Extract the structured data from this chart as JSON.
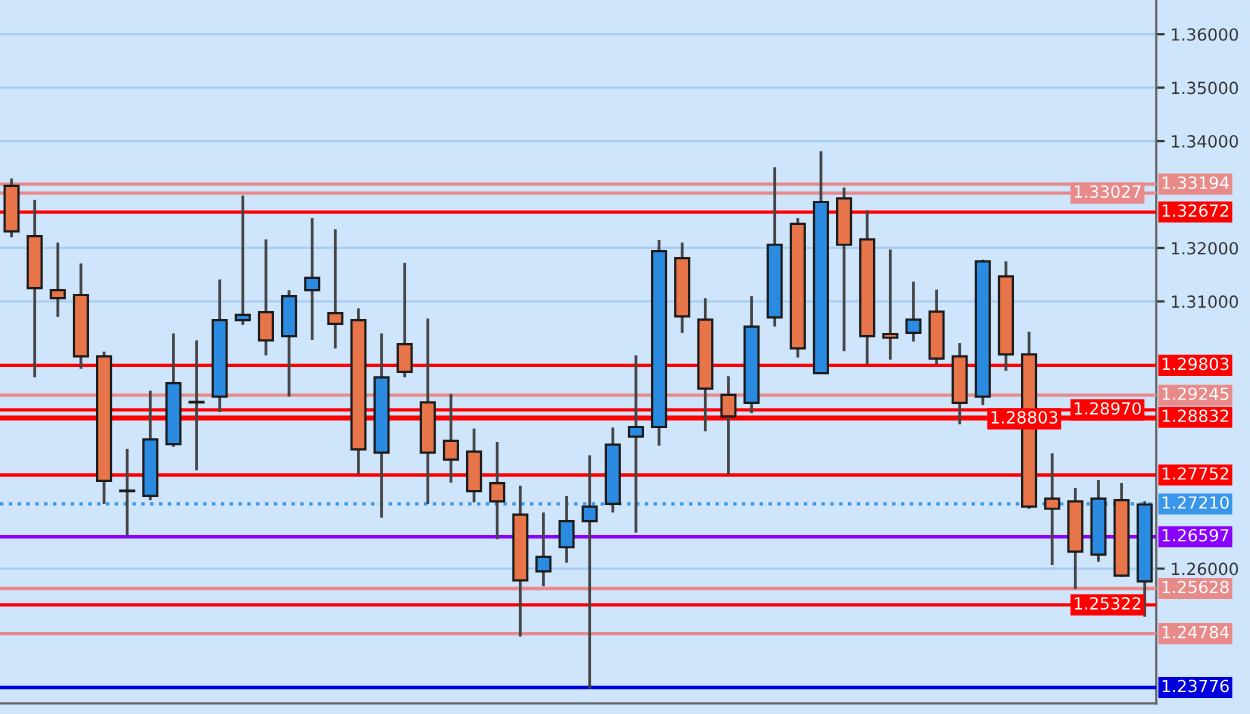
{
  "chart_data": {
    "type": "candlestick",
    "categories": [
      null,
      null,
      null,
      null,
      null,
      null,
      null,
      null,
      null,
      null,
      null,
      null,
      null,
      null,
      null,
      null,
      null,
      null,
      null,
      null,
      null,
      null,
      null,
      null,
      null,
      null,
      null,
      null,
      null,
      null,
      null,
      null,
      null,
      null,
      null,
      null,
      null,
      null,
      null,
      null,
      null,
      null,
      null,
      null,
      null,
      null,
      null,
      null,
      null,
      null
    ],
    "ohlc": [
      [
        1.3316,
        1.333,
        1.322,
        1.3231
      ],
      [
        1.3222,
        1.329,
        1.2958,
        1.3125
      ],
      [
        1.3121,
        1.321,
        1.3071,
        1.3106
      ],
      [
        1.3112,
        1.3171,
        1.2974,
        1.2997
      ],
      [
        1.2997,
        1.3006,
        1.2721,
        1.2764
      ],
      [
        1.2746,
        1.2824,
        1.2661,
        1.2745
      ],
      [
        1.2736,
        1.2933,
        1.2728,
        1.2842
      ],
      [
        1.2833,
        1.304,
        1.2828,
        1.2947
      ],
      [
        1.2911,
        1.3027,
        1.2784,
        1.2912
      ],
      [
        1.2922,
        1.3141,
        1.2893,
        1.3065
      ],
      [
        1.3065,
        1.3298,
        1.3056,
        1.3075
      ],
      [
        1.308,
        1.3216,
        1.2999,
        1.3027
      ],
      [
        1.3035,
        1.3121,
        1.2922,
        1.311
      ],
      [
        1.3121,
        1.3256,
        1.3028,
        1.3144
      ],
      [
        1.3078,
        1.3235,
        1.3012,
        1.3058
      ],
      [
        1.3065,
        1.3087,
        1.2776,
        1.2823
      ],
      [
        1.2817,
        1.304,
        1.2695,
        1.2958
      ],
      [
        1.302,
        1.3172,
        1.2958,
        1.2968
      ],
      [
        1.2911,
        1.3068,
        1.2721,
        1.2817
      ],
      [
        1.2839,
        1.2927,
        1.2761,
        1.2804
      ],
      [
        1.2819,
        1.2862,
        1.2724,
        1.2745
      ],
      [
        1.276,
        1.2837,
        1.2655,
        1.2726
      ],
      [
        1.2701,
        1.2755,
        1.2473,
        1.2578
      ],
      [
        1.2595,
        1.2705,
        1.2567,
        1.2622
      ],
      [
        1.264,
        1.2736,
        1.2611,
        1.2689
      ],
      [
        1.2689,
        1.2812,
        1.2375,
        1.2716
      ],
      [
        1.2721,
        1.2864,
        1.2705,
        1.2832
      ],
      [
        1.2847,
        1.2999,
        1.2667,
        1.2865
      ],
      [
        1.2865,
        1.3215,
        1.283,
        1.3194
      ],
      [
        1.3181,
        1.321,
        1.3041,
        1.3072
      ],
      [
        1.3066,
        1.3106,
        1.2857,
        1.2937
      ],
      [
        1.2925,
        1.296,
        1.2776,
        1.2885
      ],
      [
        1.291,
        1.311,
        1.2891,
        1.3053
      ],
      [
        1.307,
        1.3351,
        1.3053,
        1.3206
      ],
      [
        1.3245,
        1.3256,
        1.2995,
        1.3012
      ],
      [
        1.2966,
        1.3381,
        1.2966,
        1.3286
      ],
      [
        1.3293,
        1.3313,
        1.3007,
        1.3206
      ],
      [
        1.3216,
        1.327,
        1.2982,
        1.3035
      ],
      [
        1.3039,
        1.3197,
        1.2991,
        1.3032
      ],
      [
        1.3041,
        1.3137,
        1.3025,
        1.3066
      ],
      [
        1.3081,
        1.3122,
        1.2982,
        1.2993
      ],
      [
        1.2997,
        1.3022,
        1.287,
        1.291
      ],
      [
        1.2922,
        1.3178,
        1.2906,
        1.3175
      ],
      [
        1.3147,
        1.3175,
        1.297,
        1.3001
      ],
      [
        1.3001,
        1.3043,
        1.2712,
        1.2716
      ],
      [
        1.2731,
        1.2816,
        1.2607,
        1.2712
      ],
      [
        1.2726,
        1.2751,
        1.2562,
        1.2632
      ],
      [
        1.2626,
        1.2766,
        1.2613,
        1.2731
      ],
      [
        1.2728,
        1.276,
        1.2585,
        1.2587
      ],
      [
        1.2576,
        1.2726,
        1.251,
        1.272
      ]
    ],
    "colors": [
      "#e8754a",
      "#e8754a",
      "#e8754a",
      "#e8754a",
      "#e8754a",
      "#e8754a",
      "#2a8be0",
      "#2a8be0",
      "#e8754a",
      "#2a8be0",
      "#2a8be0",
      "#e8754a",
      "#2a8be0",
      "#2a8be0",
      "#e8754a",
      "#e8754a",
      "#2a8be0",
      "#e8754a",
      "#e8754a",
      "#e8754a",
      "#e8754a",
      "#e8754a",
      "#e8754a",
      "#2a8be0",
      "#2a8be0",
      "#2a8be0",
      "#2a8be0",
      "#2a8be0",
      "#2a8be0",
      "#e8754a",
      "#e8754a",
      "#e8754a",
      "#2a8be0",
      "#2a8be0",
      "#e8754a",
      "#2a8be0",
      "#e8754a",
      "#e8754a",
      "#e8754a",
      "#2a8be0",
      "#e8754a",
      "#e8754a",
      "#2a8be0",
      "#e8754a",
      "#e8754a",
      "#e8754a",
      "#e8754a",
      "#2a8be0",
      "#e8754a",
      "#2a8be0"
    ],
    "ylim": [
      1.2348,
      1.3664
    ],
    "yticks": [
      {
        "value": 1.36,
        "label": "1.36000"
      },
      {
        "value": 1.35,
        "label": "1.35000"
      },
      {
        "value": 1.34,
        "label": "1.34000"
      },
      {
        "value": 1.32,
        "label": "1.32000"
      },
      {
        "value": 1.31,
        "label": "1.31000"
      },
      {
        "value": 1.26,
        "label": "1.26000"
      }
    ],
    "grid": "y",
    "tick_labels": "y",
    "ref_lines": [
      {
        "axis": "y",
        "value": 1.33194,
        "label": "1.33194",
        "color": "#e88a8a"
      },
      {
        "axis": "y",
        "value": 1.33027,
        "label": "1.33027",
        "color": "#e88a8a"
      },
      {
        "axis": "y",
        "value": 1.32672,
        "label": "1.32672",
        "color": "#ff0000"
      },
      {
        "axis": "y",
        "value": 1.29803,
        "label": "1.29803",
        "color": "#ff0000"
      },
      {
        "axis": "y",
        "value": 1.29245,
        "label": "1.29245",
        "color": "#e88a8a"
      },
      {
        "axis": "y",
        "value": 1.2897,
        "label": "1.28970",
        "color": "#ff0000"
      },
      {
        "axis": "y",
        "value": 1.28832,
        "label": "1.28832",
        "color": "#ff0000"
      },
      {
        "axis": "y",
        "value": 1.28803,
        "label": "1.28803",
        "color": "#ff0000"
      },
      {
        "axis": "y",
        "value": 1.27752,
        "label": "1.27752",
        "color": "#ff0000"
      },
      {
        "axis": "y",
        "value": 1.2721,
        "label": "1.27210",
        "color": "#3a96e8",
        "line_style": "dotted"
      },
      {
        "axis": "y",
        "value": 1.26597,
        "label": "1.26597",
        "color": "#8a00ff"
      },
      {
        "axis": "y",
        "value": 1.25628,
        "label": "1.25628",
        "color": "#e88a8a"
      },
      {
        "axis": "y",
        "value": 1.25322,
        "label": "1.25322",
        "color": "#ff0000"
      },
      {
        "axis": "y",
        "value": 1.24784,
        "label": "1.24784",
        "color": "#e88a8a"
      },
      {
        "axis": "y",
        "value": 1.23776,
        "label": "1.23776",
        "color": "#0000dd"
      }
    ]
  }
}
